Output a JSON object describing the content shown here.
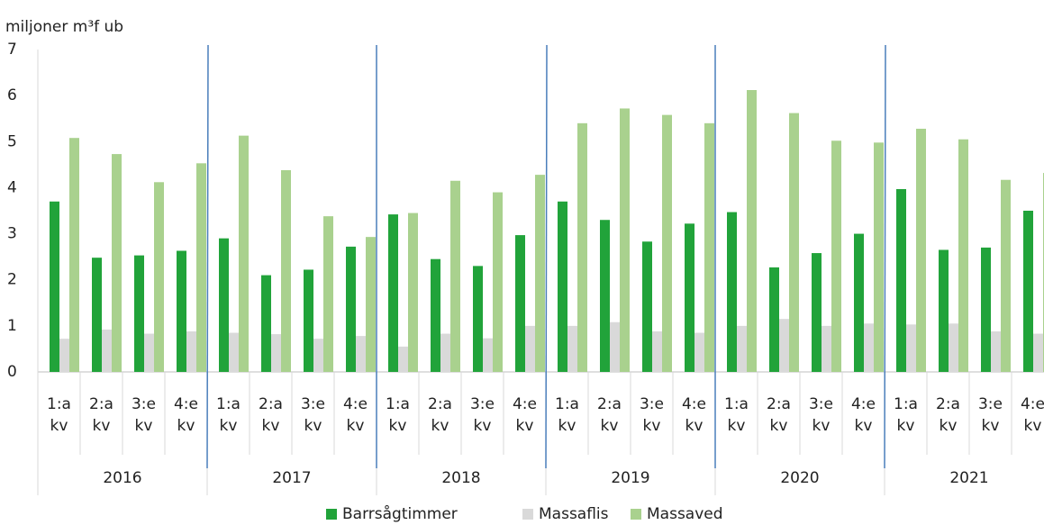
{
  "chart_data": {
    "type": "bar",
    "y_label": "miljoner m³f ub",
    "categories": [
      "1:a kv",
      "2:a kv",
      "3:e kv",
      "4:e kv",
      "1:a kv",
      "2:a kv",
      "3:e kv",
      "4:e kv",
      "1:a kv",
      "2:a kv",
      "3:e kv",
      "4:e kv",
      "1:a kv",
      "2:a kv",
      "3:e kv",
      "4:e kv",
      "1:a kv",
      "2:a kv",
      "3:e kv",
      "4:e kv",
      "1:a kv",
      "2:a kv",
      "3:e kv",
      "4:e kv"
    ],
    "groups": [
      "2016",
      "2017",
      "2018",
      "2019",
      "2020",
      "2021"
    ],
    "series": [
      {
        "name": "Barrsågtimmer",
        "color": "#21a33a",
        "values": [
          3.7,
          2.48,
          2.53,
          2.63,
          2.9,
          2.1,
          2.22,
          2.72,
          3.42,
          2.45,
          2.3,
          2.97,
          3.7,
          3.3,
          2.83,
          3.22,
          3.47,
          2.27,
          2.58,
          3.0,
          3.97,
          2.65,
          2.7,
          3.5
        ]
      },
      {
        "name": "Massaflis",
        "color": "#d9d9d9",
        "values": [
          0.72,
          0.92,
          0.83,
          0.88,
          0.85,
          0.82,
          0.72,
          0.78,
          0.55,
          0.83,
          0.73,
          1.0,
          1.0,
          1.08,
          0.88,
          0.85,
          1.0,
          1.15,
          1.0,
          1.05,
          1.03,
          1.05,
          0.88,
          0.83
        ]
      },
      {
        "name": "Massaved",
        "color": "#a9d18e",
        "values": [
          5.08,
          4.73,
          4.12,
          4.53,
          5.13,
          4.38,
          3.38,
          2.93,
          3.45,
          4.15,
          3.9,
          4.28,
          5.4,
          5.72,
          5.58,
          5.4,
          6.12,
          5.62,
          5.02,
          4.98,
          5.28,
          5.05,
          4.17,
          4.32
        ]
      }
    ],
    "ylim": [
      0,
      7
    ],
    "yticks": [
      0,
      1,
      2,
      3,
      4,
      5,
      6,
      7
    ],
    "grid": false
  }
}
